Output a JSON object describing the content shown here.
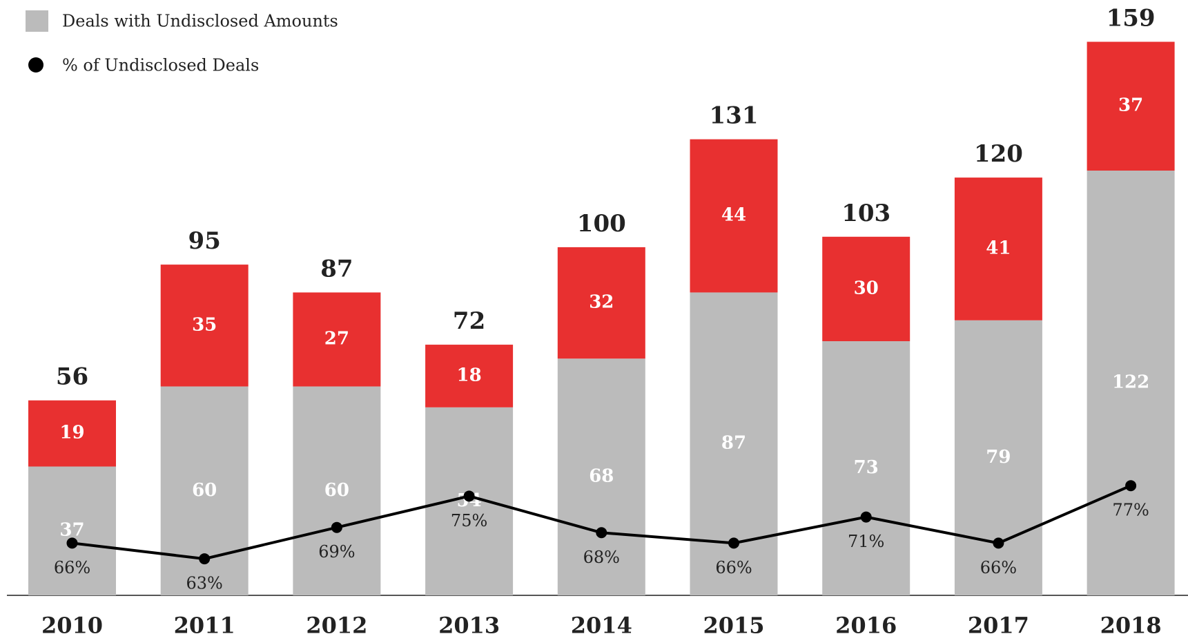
{
  "chart_data": {
    "type": "bar",
    "categories": [
      "2010",
      "2011",
      "2012",
      "2013",
      "2014",
      "2015",
      "2016",
      "2017",
      "2018"
    ],
    "series": [
      {
        "name": "Deals with Undisclosed Amounts",
        "color": "#bbbbbb",
        "values": [
          37,
          60,
          60,
          54,
          68,
          87,
          73,
          79,
          122
        ]
      },
      {
        "color": "#e83030",
        "values": [
          19,
          35,
          27,
          18,
          32,
          44,
          30,
          41,
          37
        ]
      },
      {
        "name": "% of Undisclosed Deals",
        "type": "line",
        "axis": "y2",
        "color": "#000000",
        "values": [
          66,
          63,
          69,
          75,
          68,
          66,
          71,
          66,
          77
        ],
        "value_labels": [
          "66%",
          "63%",
          "69%",
          "75%",
          "68%",
          "66%",
          "71%",
          "66%",
          "77%"
        ]
      }
    ],
    "totals": [
      56,
      95,
      87,
      72,
      100,
      131,
      103,
      120,
      159
    ],
    "ylim": [
      0,
      171
    ],
    "y2lim": [
      56,
      170
    ],
    "stacked": true,
    "legend": "top-left"
  }
}
